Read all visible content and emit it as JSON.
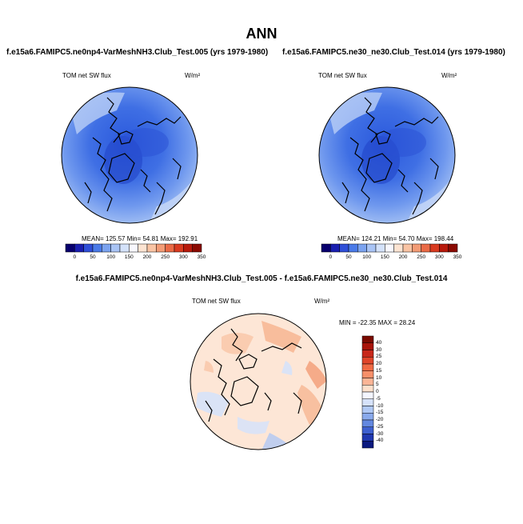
{
  "page_title": "ANN",
  "panels": [
    {
      "case_title": "f.e15a6.FAMIPC5.ne0np4-VarMeshNH3.Club_Test.005 (yrs 1979-1980)",
      "variable": "TOM net SW flux",
      "units": "W/m²",
      "stats": "MEAN= 125.57  Min=  54.81  Max= 192.91"
    },
    {
      "case_title": "f.e15a6.FAMIPC5.ne30_ne30.Club_Test.014 (yrs 1979-1980)",
      "variable": "TOM net SW flux",
      "units": "W/m²",
      "stats": "MEAN= 124.21  Min=  54.70  Max= 198.44"
    },
    {
      "case_title": "f.e15a6.FAMIPC5.ne0np4-VarMeshNH3.Club_Test.005 - f.e15a6.FAMIPC5.ne30_ne30.Club_Test.014",
      "variable": "TOM net SW flux",
      "units": "W/m²",
      "stats": "MIN = -22.35 MAX =  28.24"
    }
  ],
  "colorbar_abs": {
    "labels": [
      "0",
      "50",
      "100",
      "150",
      "200",
      "250",
      "300",
      "350"
    ],
    "colors": [
      "#08006e",
      "#1a1fb0",
      "#2f4fd8",
      "#4a7ae8",
      "#7ba3f0",
      "#a9c4f5",
      "#d4e2fa",
      "#f8f8ff",
      "#fde4d2",
      "#f9c4a4",
      "#f39c76",
      "#ea6a46",
      "#d93a20",
      "#b81a0c",
      "#8b0a02"
    ]
  },
  "colorbar_diff": {
    "labels": [
      "40",
      "30",
      "25",
      "20",
      "15",
      "10",
      "5",
      "0",
      "-5",
      "-10",
      "-15",
      "-20",
      "-25",
      "-30",
      "-40"
    ],
    "colors": [
      "#7a0a00",
      "#a8140a",
      "#c8281a",
      "#e0452a",
      "#f06a44",
      "#f7906a",
      "#fbb596",
      "#fde0cc",
      "#f4f6ff",
      "#d6e2fa",
      "#b0c8f4",
      "#8aaaec",
      "#6388e0",
      "#3e60d0",
      "#2038b0",
      "#0c1a80"
    ]
  },
  "colors": {
    "ocean_base": "#5e8ef0",
    "arctic_deep": "#2f5fe0",
    "diff_base": "#fde6d6"
  }
}
